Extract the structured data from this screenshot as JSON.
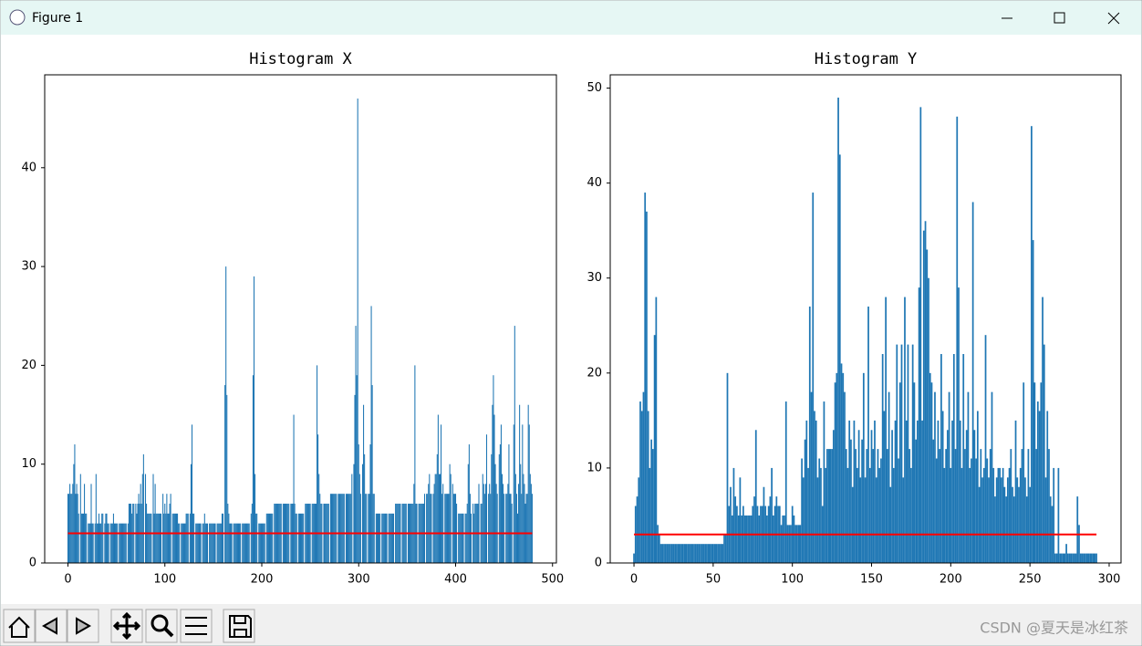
{
  "window": {
    "title": "Figure 1"
  },
  "watermark": "CSDN @夏天是冰红茶",
  "chart_data": [
    {
      "type": "bar",
      "title": "Histogram X",
      "color": "#1f77b4",
      "xlim": [
        -24,
        504
      ],
      "xticks": [
        0,
        100,
        200,
        300,
        400,
        500
      ],
      "ylim": [
        0,
        49.4
      ],
      "yticks": [
        0,
        10,
        20,
        30,
        40
      ],
      "values": [
        7,
        7,
        8,
        7,
        7,
        8,
        10,
        12,
        7,
        8,
        7,
        5,
        0,
        9,
        5,
        5,
        5,
        8,
        5,
        5,
        0,
        4,
        4,
        4,
        8,
        4,
        4,
        0,
        4,
        9,
        4,
        4,
        5,
        4,
        4,
        5,
        5,
        0,
        4,
        5,
        5,
        4,
        4,
        0,
        4,
        4,
        4,
        5,
        4,
        4,
        4,
        4,
        0,
        4,
        4,
        4,
        4,
        4,
        4,
        4,
        4,
        0,
        4,
        6,
        6,
        6,
        5,
        6,
        6,
        0,
        6,
        5,
        6,
        7,
        6,
        8,
        6,
        9,
        11,
        0,
        9,
        6,
        5,
        5,
        5,
        5,
        5,
        0,
        9,
        5,
        8,
        5,
        5,
        5,
        5,
        5,
        5,
        0,
        7,
        5,
        6,
        5,
        7,
        5,
        5,
        6,
        7,
        0,
        5,
        5,
        5,
        5,
        5,
        5,
        4,
        4,
        0,
        4,
        4,
        4,
        4,
        4,
        5,
        5,
        5,
        0,
        5,
        10,
        14,
        5,
        5,
        0,
        4,
        4,
        4,
        4,
        4,
        4,
        0,
        4,
        4,
        5,
        4,
        4,
        4,
        0,
        4,
        4,
        4,
        4,
        4,
        4,
        4,
        0,
        4,
        4,
        4,
        4,
        4,
        5,
        5,
        0,
        18,
        30,
        17,
        6,
        5,
        4,
        4,
        4,
        0,
        4,
        4,
        4,
        4,
        4,
        4,
        4,
        4,
        0,
        4,
        4,
        4,
        4,
        4,
        4,
        4,
        4,
        0,
        5,
        6,
        19,
        29,
        9,
        5,
        5,
        0,
        4,
        4,
        4,
        4,
        4,
        4,
        4,
        0,
        5,
        5,
        5,
        5,
        5,
        5,
        5,
        0,
        6,
        6,
        6,
        6,
        6,
        6,
        6,
        6,
        0,
        6,
        6,
        6,
        6,
        6,
        6,
        6,
        0,
        6,
        6,
        6,
        15,
        6,
        5,
        5,
        0,
        5,
        5,
        5,
        5,
        5,
        5,
        0,
        6,
        6,
        6,
        6,
        6,
        6,
        0,
        6,
        6,
        6,
        6,
        6,
        20,
        13,
        9,
        7,
        6,
        6,
        0,
        6,
        6,
        6,
        6,
        6,
        6,
        0,
        7,
        7,
        7,
        7,
        7,
        7,
        7,
        0,
        7,
        7,
        7,
        7,
        7,
        7,
        7,
        0,
        7,
        7,
        7,
        7,
        7,
        7,
        9,
        0,
        10,
        17,
        24,
        19,
        47,
        12,
        9,
        7,
        0,
        10,
        16,
        11,
        7,
        7,
        0,
        7,
        7,
        12,
        26,
        18,
        7,
        7,
        0,
        5,
        5,
        5,
        5,
        5,
        0,
        5,
        5,
        5,
        5,
        5,
        5,
        0,
        5,
        5,
        5,
        5,
        5,
        5,
        0,
        6,
        6,
        6,
        6,
        6,
        6,
        0,
        6,
        6,
        6,
        6,
        6,
        0,
        6,
        6,
        6,
        6,
        6,
        6,
        8,
        20,
        6,
        6,
        0,
        6,
        6,
        6,
        6,
        6,
        6,
        7,
        0,
        7,
        7,
        8,
        9,
        7,
        7,
        0,
        7,
        8,
        9,
        9,
        11,
        15,
        9,
        9,
        14,
        7,
        8,
        0,
        7,
        7,
        7,
        7,
        7,
        10,
        9,
        0,
        8,
        7,
        7,
        7,
        6,
        0,
        5,
        5,
        5,
        5,
        5,
        5,
        0,
        5,
        5,
        6,
        10,
        12,
        7,
        5,
        0,
        6,
        5,
        6,
        6,
        6,
        6,
        8,
        0,
        6,
        6,
        9,
        8,
        7,
        8,
        13,
        0,
        7,
        8,
        7,
        11,
        16,
        19,
        15,
        10,
        8,
        7,
        0,
        11,
        12,
        14,
        9,
        8,
        7,
        0,
        7,
        7,
        8,
        12,
        7,
        7,
        6,
        0,
        14,
        24,
        9,
        7,
        5,
        8,
        16,
        10,
        7,
        14,
        9,
        8,
        6,
        7,
        7,
        16,
        14,
        9,
        8,
        7
      ],
      "line": {
        "color": "#ff0000",
        "x": [
          0,
          479
        ],
        "y": [
          3,
          3
        ]
      }
    },
    {
      "type": "bar",
      "title": "Histogram Y",
      "color": "#1f77b4",
      "xlim": [
        -15,
        307.5
      ],
      "xticks": [
        0,
        50,
        100,
        150,
        200,
        250,
        300
      ],
      "ylim": [
        0,
        51.4
      ],
      "yticks": [
        0,
        10,
        20,
        30,
        40,
        50
      ],
      "values": [
        1,
        6,
        7,
        9,
        17,
        16,
        18,
        39,
        37,
        16,
        10,
        13,
        12,
        24,
        28,
        4,
        3,
        2,
        2,
        2,
        2,
        2,
        2,
        2,
        2,
        2,
        2,
        2,
        2,
        2,
        2,
        2,
        2,
        2,
        2,
        2,
        2,
        2,
        2,
        2,
        2,
        2,
        2,
        2,
        2,
        2,
        2,
        2,
        2,
        2,
        2,
        2,
        2,
        2,
        2,
        2,
        2,
        3,
        3,
        20,
        6,
        8,
        5,
        10,
        7,
        6,
        5,
        9,
        5,
        6,
        5,
        5,
        5,
        5,
        5,
        6,
        7,
        14,
        6,
        5,
        6,
        6,
        8,
        6,
        5,
        6,
        7,
        10,
        5,
        6,
        7,
        6,
        6,
        4,
        5,
        5,
        17,
        4,
        4,
        4,
        6,
        5,
        4,
        4,
        4,
        4,
        11,
        9,
        13,
        15,
        10,
        27,
        18,
        39,
        16,
        15,
        9,
        11,
        10,
        6,
        17,
        10,
        12,
        12,
        12,
        12,
        14,
        19,
        20,
        49,
        43,
        21,
        20,
        18,
        12,
        10,
        15,
        13,
        8,
        15,
        12,
        10,
        14,
        9,
        13,
        20,
        9,
        12,
        27,
        10,
        14,
        12,
        15,
        9,
        12,
        10,
        11,
        22,
        16,
        28,
        12,
        18,
        8,
        14,
        10,
        15,
        23,
        11,
        19,
        23,
        9,
        28,
        15,
        23,
        12,
        10,
        23,
        19,
        13,
        15,
        29,
        48,
        15,
        35,
        36,
        33,
        30,
        20,
        19,
        13,
        18,
        11,
        15,
        12,
        22,
        16,
        10,
        12,
        14,
        18,
        10,
        15,
        22,
        12,
        47,
        29,
        15,
        10,
        22,
        12,
        14,
        18,
        10,
        11,
        38,
        14,
        11,
        16,
        8,
        12,
        9,
        10,
        24,
        11,
        9,
        12,
        18,
        10,
        7,
        9,
        10,
        10,
        9,
        10,
        8,
        7,
        9,
        10,
        12,
        8,
        7,
        15,
        9,
        8,
        10,
        12,
        19,
        9,
        7,
        12,
        8,
        46,
        34,
        19,
        12,
        17,
        16,
        19,
        28,
        23,
        9,
        16,
        12,
        7,
        6,
        10,
        1,
        1,
        10,
        1,
        1,
        1,
        1,
        2,
        1,
        1,
        1,
        1,
        1,
        1,
        7,
        4,
        1,
        1,
        1,
        1,
        1,
        1,
        1,
        1,
        1,
        1,
        1
      ],
      "line": {
        "color": "#ff0000",
        "x": [
          0,
          292
        ],
        "y": [
          3,
          3
        ]
      }
    }
  ]
}
